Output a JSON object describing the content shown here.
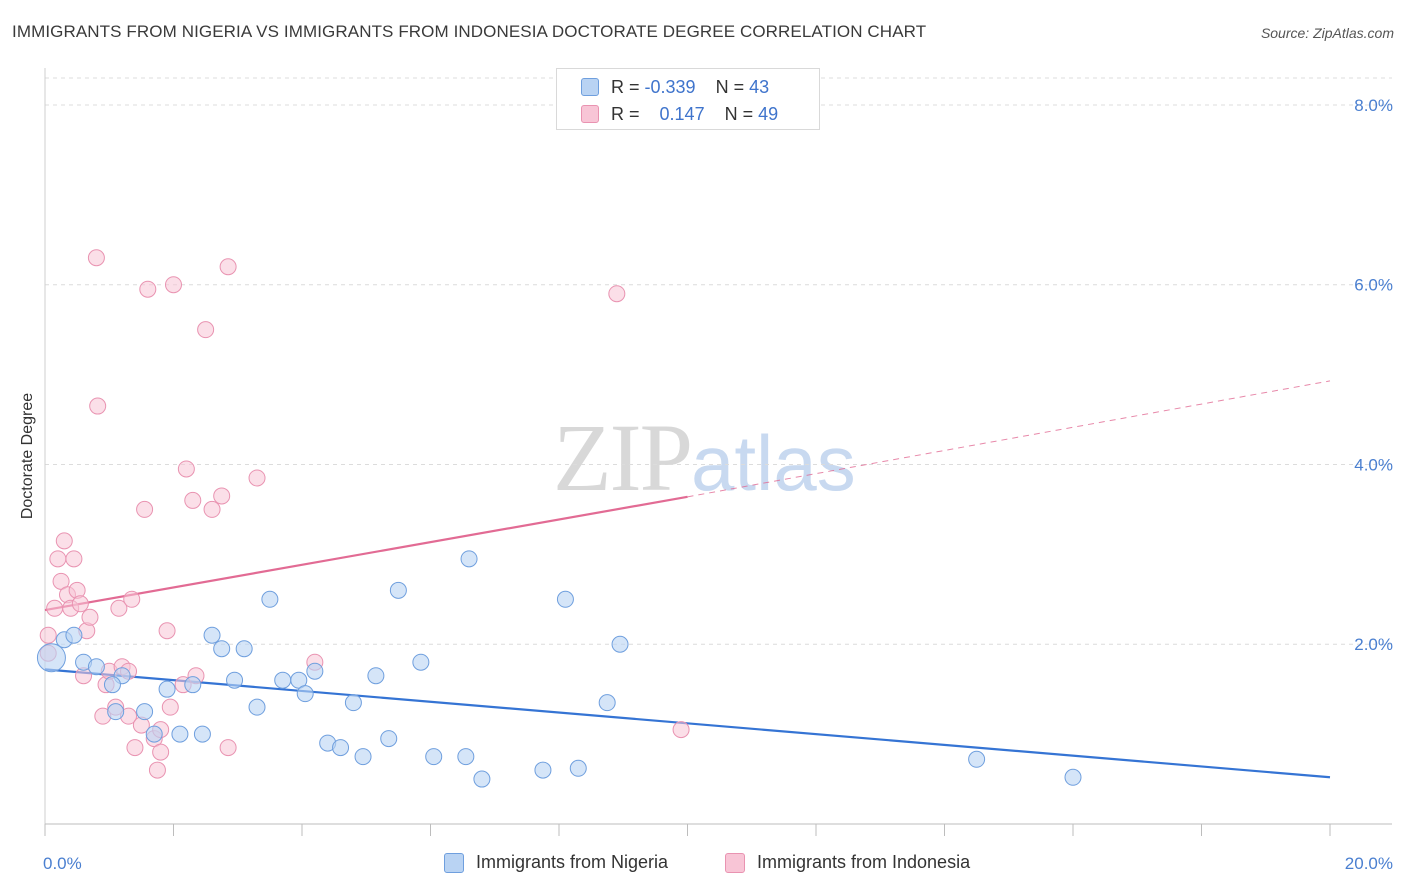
{
  "title": "IMMIGRANTS FROM NIGERIA VS IMMIGRANTS FROM INDONESIA DOCTORATE DEGREE CORRELATION CHART",
  "source": "Source: ZipAtlas.com",
  "watermark": {
    "zip": "ZIP",
    "atlas": "atlas"
  },
  "colors": {
    "nigeria_fill": "#b9d3f3",
    "nigeria_stroke": "#6f9fde",
    "nigeria_line": "#3574d4",
    "indonesia_fill": "#f8c5d6",
    "indonesia_stroke": "#e993b1",
    "indonesia_line": "#e26b94",
    "tick_text": "#4a7fd0",
    "grid": "#dcdcdc"
  },
  "legend_top": {
    "nigeria": {
      "r_label": "R =",
      "r_value": "-0.339",
      "n_label": "N =",
      "n_value": "43"
    },
    "indonesia": {
      "r_label": "R =",
      "r_value": "0.147",
      "n_label": "N =",
      "n_value": "49"
    }
  },
  "legend_bottom": {
    "nigeria": "Immigrants from Nigeria",
    "indonesia": "Immigrants from Indonesia"
  },
  "chart_data": {
    "type": "scatter",
    "title": "IMMIGRANTS FROM NIGERIA VS IMMIGRANTS FROM INDONESIA DOCTORATE DEGREE CORRELATION CHART",
    "xlabel": "",
    "ylabel": "Doctorate Degree",
    "xlim": [
      0,
      20
    ],
    "ylim": [
      0,
      8.3
    ],
    "x_tick_labels": [
      "0.0%",
      "20.0%"
    ],
    "y_ticks": [
      2,
      4,
      6,
      8
    ],
    "y_tick_labels": [
      "2.0%",
      "4.0%",
      "6.0%",
      "8.0%"
    ],
    "grid": true,
    "legend_placement": "top-center",
    "series": [
      {
        "name": "Immigrants from Nigeria",
        "points": [
          [
            0.1,
            1.85
          ],
          [
            0.3,
            2.05
          ],
          [
            0.45,
            2.1
          ],
          [
            0.6,
            1.8
          ],
          [
            0.8,
            1.75
          ],
          [
            1.2,
            1.65
          ],
          [
            1.05,
            1.55
          ],
          [
            1.1,
            1.25
          ],
          [
            1.55,
            1.25
          ],
          [
            1.7,
            1.0
          ],
          [
            1.9,
            1.5
          ],
          [
            2.1,
            1.0
          ],
          [
            2.3,
            1.55
          ],
          [
            2.45,
            1.0
          ],
          [
            2.6,
            2.1
          ],
          [
            2.75,
            1.95
          ],
          [
            2.95,
            1.6
          ],
          [
            3.1,
            1.95
          ],
          [
            3.3,
            1.3
          ],
          [
            3.5,
            2.5
          ],
          [
            3.7,
            1.6
          ],
          [
            3.95,
            1.6
          ],
          [
            4.05,
            1.45
          ],
          [
            4.2,
            1.7
          ],
          [
            4.4,
            0.9
          ],
          [
            4.6,
            0.85
          ],
          [
            4.8,
            1.35
          ],
          [
            4.95,
            0.75
          ],
          [
            5.15,
            1.65
          ],
          [
            5.35,
            0.95
          ],
          [
            5.5,
            2.6
          ],
          [
            5.85,
            1.8
          ],
          [
            6.05,
            0.75
          ],
          [
            6.55,
            0.75
          ],
          [
            6.8,
            0.5
          ],
          [
            6.6,
            2.95
          ],
          [
            7.75,
            0.6
          ],
          [
            8.1,
            2.5
          ],
          [
            8.3,
            0.62
          ],
          [
            8.75,
            1.35
          ],
          [
            8.95,
            2.0
          ],
          [
            14.5,
            0.72
          ],
          [
            16.0,
            0.52
          ]
        ],
        "trend": [
          [
            0,
            1.72
          ],
          [
            20,
            0.52
          ]
        ]
      },
      {
        "name": "Immigrants from Indonesia",
        "points": [
          [
            0.05,
            2.1
          ],
          [
            0.05,
            1.9
          ],
          [
            0.15,
            2.4
          ],
          [
            0.2,
            2.95
          ],
          [
            0.25,
            2.7
          ],
          [
            0.3,
            3.15
          ],
          [
            0.35,
            2.55
          ],
          [
            0.4,
            2.4
          ],
          [
            0.45,
            2.95
          ],
          [
            0.5,
            2.6
          ],
          [
            0.55,
            2.45
          ],
          [
            0.6,
            1.65
          ],
          [
            0.65,
            2.15
          ],
          [
            0.7,
            2.3
          ],
          [
            0.8,
            6.3
          ],
          [
            0.82,
            4.65
          ],
          [
            0.9,
            1.2
          ],
          [
            0.95,
            1.55
          ],
          [
            1.0,
            1.7
          ],
          [
            1.1,
            1.3
          ],
          [
            1.15,
            2.4
          ],
          [
            1.2,
            1.75
          ],
          [
            1.3,
            1.2
          ],
          [
            1.3,
            1.7
          ],
          [
            1.35,
            2.5
          ],
          [
            1.4,
            0.85
          ],
          [
            1.5,
            1.1
          ],
          [
            1.55,
            3.5
          ],
          [
            1.6,
            5.95
          ],
          [
            1.7,
            0.95
          ],
          [
            1.75,
            0.6
          ],
          [
            1.8,
            1.05
          ],
          [
            1.8,
            0.8
          ],
          [
            1.9,
            2.15
          ],
          [
            1.95,
            1.3
          ],
          [
            2.0,
            6.0
          ],
          [
            2.15,
            1.55
          ],
          [
            2.2,
            3.95
          ],
          [
            2.3,
            3.6
          ],
          [
            2.35,
            1.65
          ],
          [
            2.5,
            5.5
          ],
          [
            2.6,
            3.5
          ],
          [
            2.75,
            3.65
          ],
          [
            2.85,
            6.2
          ],
          [
            2.85,
            0.85
          ],
          [
            3.3,
            3.85
          ],
          [
            4.2,
            1.8
          ],
          [
            8.9,
            5.9
          ],
          [
            9.9,
            1.05
          ]
        ],
        "trend": [
          [
            0,
            2.38
          ],
          [
            10,
            3.64
          ]
        ],
        "trend_extension": [
          [
            10,
            3.64
          ],
          [
            20,
            4.93
          ]
        ]
      }
    ]
  }
}
